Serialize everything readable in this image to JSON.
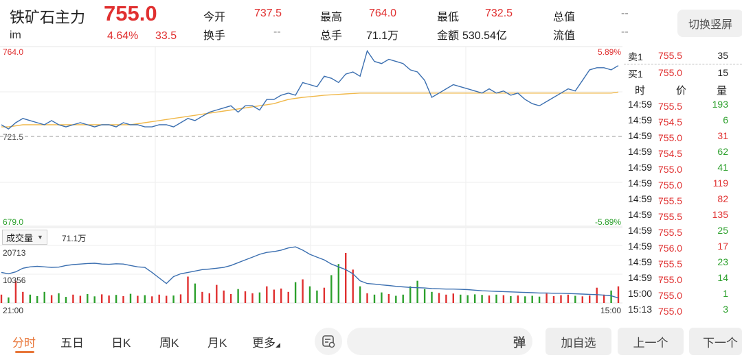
{
  "header": {
    "name": "铁矿石主力",
    "price": "755.0",
    "code": "im",
    "change_pct": "4.64%",
    "change_val": "33.5",
    "stats": [
      {
        "label": "今开",
        "value": "737.5",
        "color": "red"
      },
      {
        "label": "最高",
        "value": "764.0",
        "color": "red"
      },
      {
        "label": "最低",
        "value": "732.5",
        "color": "red"
      },
      {
        "label": "总值",
        "value": "--",
        "color": "gray"
      },
      {
        "label": "换手",
        "value": "--",
        "color": "gray"
      },
      {
        "label": "总手",
        "value": "71.1万",
        "color": "dark"
      },
      {
        "label": "金额",
        "value": "530.54亿",
        "color": "dark"
      },
      {
        "label": "流值",
        "value": "--",
        "color": "gray"
      }
    ],
    "switch_label": "切换竖屏"
  },
  "chart": {
    "y_top": "764.0",
    "y_mid": "721.5",
    "y_bottom": "679.0",
    "pct_top": "5.89%",
    "pct_bottom": "-5.89%",
    "vol_tab": "成交量",
    "vol_total": "71.1万",
    "vol_max": "20713",
    "vol_mid": "10356",
    "time_start": "21:00",
    "time_end": "15:00"
  },
  "colors": {
    "up": "#e03030",
    "down": "#2ca02c",
    "line": "#3b6fb0",
    "avg": "#f0b84a",
    "accent": "#e8773a"
  },
  "chart_data": {
    "type": "line",
    "title": "",
    "ylim": [
      679.0,
      764.0
    ],
    "series": [
      {
        "values": [
          727,
          725,
          728,
          730,
          729,
          728,
          727,
          729,
          727,
          726,
          727,
          728,
          727,
          726,
          727,
          727,
          726,
          728,
          727,
          727,
          726,
          726,
          727,
          727,
          726,
          728,
          730,
          729,
          731,
          733,
          734,
          735,
          736,
          733,
          736,
          736,
          734,
          739,
          739,
          741,
          742,
          741,
          747,
          746,
          745,
          750,
          749,
          747,
          751,
          752,
          750,
          762,
          757,
          756,
          758,
          757,
          756,
          753,
          752,
          748,
          740,
          742,
          744,
          746,
          745,
          744,
          743,
          742,
          744,
          742,
          743,
          741,
          742,
          739,
          737,
          736,
          738,
          740,
          742,
          744,
          743,
          748,
          753,
          754,
          754,
          753,
          755
        ]
      },
      {
        "values": [
          726,
          726,
          726.5,
          727,
          727,
          727,
          727,
          727,
          727,
          727,
          727,
          727,
          727,
          727,
          727,
          727,
          727,
          727,
          727,
          727.5,
          728,
          728.5,
          729,
          729.5,
          730,
          730.5,
          731,
          731.5,
          732,
          732.5,
          733,
          733.5,
          734,
          734.5,
          735,
          735.5,
          736,
          736.5,
          737,
          738,
          739,
          739.5,
          740,
          740.3,
          740.6,
          741,
          741.2,
          741.4,
          741.6,
          741.8,
          742,
          742,
          742,
          742,
          742,
          742,
          742,
          742,
          742,
          742,
          742,
          742,
          742,
          742,
          742,
          742,
          742,
          742,
          742,
          742,
          742,
          742,
          742,
          742,
          742,
          742,
          742,
          742,
          742,
          742,
          742,
          742,
          742,
          742,
          742,
          742,
          742.5
        ]
      }
    ],
    "volume": [
      3000,
      2000,
      8000,
      4000,
      3000,
      2500,
      4000,
      2800,
      3500,
      2200,
      3000,
      2600,
      3200,
      2400,
      3100,
      2700,
      2900,
      2500,
      3300,
      2600,
      2800,
      2400,
      3000,
      2600,
      2700,
      3100,
      9500,
      7000,
      4000,
      3500,
      6500,
      4500,
      3200,
      5000,
      4200,
      3500,
      3800,
      6000,
      4800,
      5200,
      4000,
      7500,
      8500,
      6000,
      4500,
      5500,
      10000,
      14000,
      18000,
      12000,
      6000,
      3500,
      3000,
      3800,
      3200,
      2600,
      3000,
      6000,
      8000,
      5000,
      4000,
      3600,
      3000,
      3400,
      3000,
      2800,
      3100,
      2900,
      2700,
      3000,
      2800,
      2500,
      2700,
      2400,
      2600,
      2300,
      3400,
      2500,
      2800,
      3000,
      2600,
      2400,
      2700,
      5500,
      3000,
      4500,
      6000
    ],
    "volume_ma": [
      11000,
      10500,
      11200,
      12500,
      13000,
      13200,
      13000,
      12800,
      12900,
      13500,
      13800,
      14000,
      14200,
      14300,
      14000,
      13900,
      14100,
      14000,
      13500,
      13000,
      12800,
      11000,
      9000,
      7000,
      9500,
      10500,
      11000,
      11500,
      12000,
      12200,
      12500,
      12800,
      13500,
      14500,
      15500,
      16500,
      17500,
      18200,
      18500,
      19000,
      19800,
      20200,
      19000,
      17500,
      16500,
      15500,
      14000,
      13000,
      12000,
      10500,
      8000,
      7000,
      6800,
      6500,
      6300,
      6000,
      5800,
      5600,
      5500,
      5400,
      5200,
      5100,
      5000,
      5000,
      4900,
      4800,
      4600,
      4400,
      4300,
      4200,
      4100,
      4000,
      3900,
      3800,
      3700,
      3600,
      3600,
      3500,
      3500,
      3400,
      3300,
      3200,
      3100,
      3000,
      2800,
      2600,
      1800
    ],
    "vol_ylim": [
      0,
      20713
    ]
  },
  "book": {
    "ask": {
      "label": "卖1",
      "price": "755.5",
      "vol": "35"
    },
    "bid": {
      "label": "买1",
      "price": "755.0",
      "vol": "15"
    },
    "headers": {
      "time": "时",
      "price": "价",
      "vol": "量"
    },
    "ticks": [
      {
        "time": "14:59",
        "price": "755.5",
        "arrow": "",
        "pc": "red",
        "vol": "193",
        "vc": "green"
      },
      {
        "time": "14:59",
        "price": "754.5",
        "arrow": "↓",
        "pc": "red",
        "vol": "6",
        "vc": "green"
      },
      {
        "time": "14:59",
        "price": "755.0",
        "arrow": "↑",
        "pc": "red",
        "vol": "31",
        "vc": "red"
      },
      {
        "time": "14:59",
        "price": "754.5",
        "arrow": "↓",
        "pc": "red",
        "vol": "62",
        "vc": "green"
      },
      {
        "time": "14:59",
        "price": "755.0",
        "arrow": "↑",
        "pc": "red",
        "vol": "41",
        "vc": "green"
      },
      {
        "time": "14:59",
        "price": "755.0",
        "arrow": "",
        "pc": "red",
        "vol": "119",
        "vc": "red"
      },
      {
        "time": "14:59",
        "price": "755.5",
        "arrow": "↑",
        "pc": "red",
        "vol": "82",
        "vc": "red"
      },
      {
        "time": "14:59",
        "price": "755.5",
        "arrow": "",
        "pc": "red",
        "vol": "135",
        "vc": "red"
      },
      {
        "time": "14:59",
        "price": "755.5",
        "arrow": "",
        "pc": "red",
        "vol": "25",
        "vc": "green"
      },
      {
        "time": "14:59",
        "price": "756.0",
        "arrow": "↑",
        "pc": "red",
        "vol": "17",
        "vc": "red"
      },
      {
        "time": "14:59",
        "price": "755.5",
        "arrow": "↓",
        "pc": "red",
        "vol": "23",
        "vc": "green"
      },
      {
        "time": "14:59",
        "price": "755.0",
        "arrow": "↓",
        "pc": "red",
        "vol": "14",
        "vc": "green"
      },
      {
        "time": "15:00",
        "price": "755.0",
        "arrow": "",
        "pc": "red",
        "vol": "1",
        "vc": "green"
      },
      {
        "time": "15:13",
        "price": "755.0",
        "arrow": "",
        "pc": "red",
        "vol": "3",
        "vc": "green"
      }
    ]
  },
  "bottom": {
    "tabs": [
      "分时",
      "五日",
      "日K",
      "周K",
      "月K",
      "更多"
    ],
    "danmu_label": "弹",
    "add_watch": "加自选",
    "prev": "上一个",
    "next": "下一个"
  }
}
